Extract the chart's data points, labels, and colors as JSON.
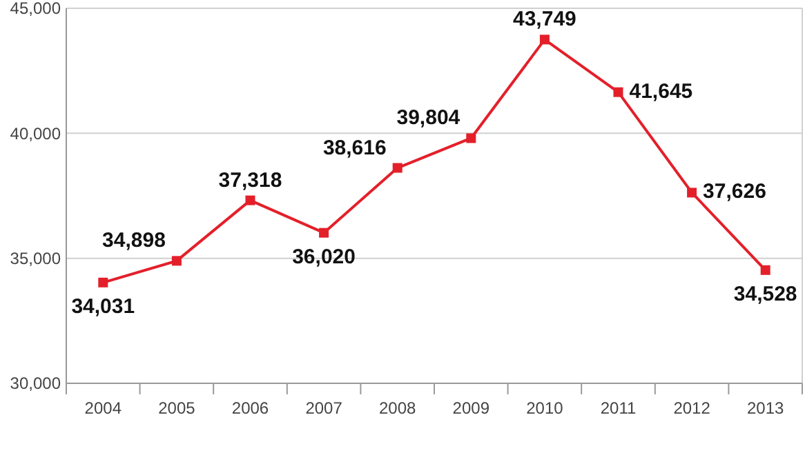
{
  "chart_data": {
    "type": "line",
    "categories": [
      "2004",
      "2005",
      "2006",
      "2007",
      "2008",
      "2009",
      "2010",
      "2011",
      "2012",
      "2013"
    ],
    "series": [
      {
        "color": "#e3202a",
        "values": [
          34031,
          34898,
          37318,
          36020,
          38616,
          39804,
          43749,
          41645,
          37626,
          34528
        ],
        "value_labels": [
          "34,031",
          "34,898",
          "37,318",
          "36,020",
          "38,616",
          "39,804",
          "43,749",
          "41,645",
          "37,626",
          "34,528"
        ]
      }
    ],
    "ylim": [
      30000,
      45000
    ],
    "yticks": [
      {
        "value": 30000,
        "label": "30,000"
      },
      {
        "value": 35000,
        "label": "35,000"
      },
      {
        "value": 40000,
        "label": "40,000"
      },
      {
        "value": 45000,
        "label": "45,000"
      }
    ],
    "grid": "y",
    "marker": "square"
  }
}
